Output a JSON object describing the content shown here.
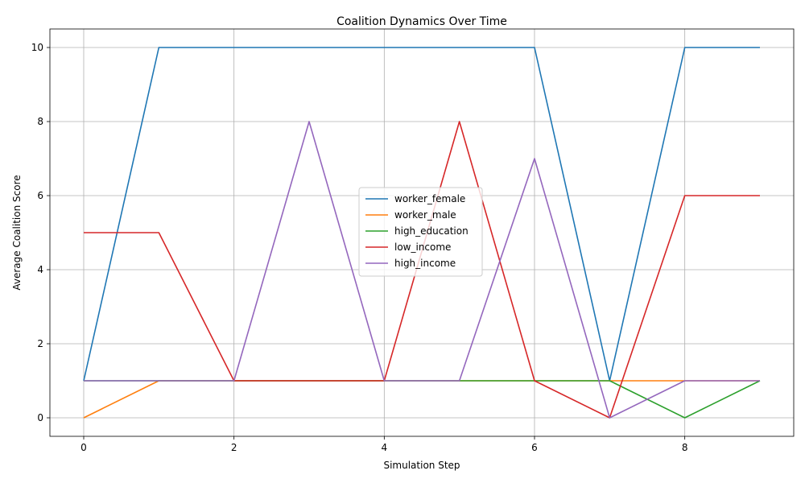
{
  "chart_data": {
    "type": "line",
    "title": "Coalition Dynamics Over Time",
    "xlabel": "Simulation Step",
    "ylabel": "Average Coalition Score",
    "x": [
      0,
      1,
      2,
      3,
      4,
      5,
      6,
      7,
      8,
      9
    ],
    "xlim": [
      -0.45,
      9.45
    ],
    "ylim": [
      -0.5,
      10.5
    ],
    "xticks": [
      0,
      2,
      4,
      6,
      8
    ],
    "yticks": [
      0,
      2,
      4,
      6,
      8,
      10
    ],
    "grid": true,
    "legend_position": "center-right",
    "series": [
      {
        "name": "worker_female",
        "color": "#1f77b4",
        "values": [
          1,
          10,
          10,
          10,
          10,
          10,
          10,
          1,
          10,
          10
        ]
      },
      {
        "name": "worker_male",
        "color": "#ff7f0e",
        "values": [
          0,
          1,
          1,
          1,
          1,
          1,
          1,
          1,
          1,
          1
        ]
      },
      {
        "name": "high_education",
        "color": "#2ca02c",
        "values": [
          1,
          1,
          1,
          1,
          1,
          1,
          1,
          1,
          0,
          1
        ]
      },
      {
        "name": "low_income",
        "color": "#d62728",
        "values": [
          5,
          5,
          1,
          1,
          1,
          8,
          1,
          0,
          6,
          6
        ]
      },
      {
        "name": "high_income",
        "color": "#9467bd",
        "values": [
          1,
          1,
          1,
          8,
          1,
          1,
          7,
          0,
          1,
          1
        ]
      }
    ]
  }
}
